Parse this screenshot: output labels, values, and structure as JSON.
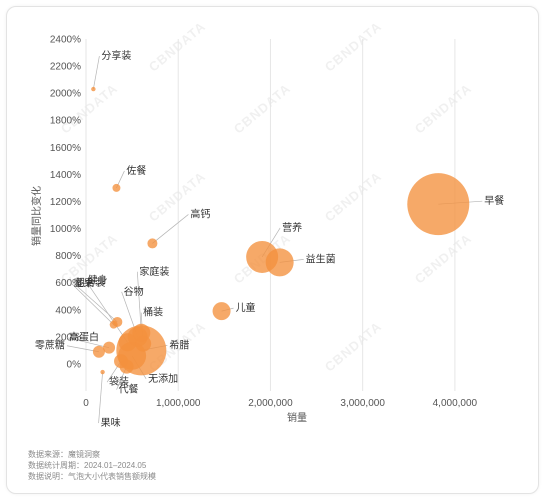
{
  "chart_data": {
    "type": "scatter",
    "subtype": "bubble",
    "xlabel": "销量",
    "ylabel": "销量同比变化",
    "xlim": [
      0,
      4500000
    ],
    "ylim": [
      -200,
      2400
    ],
    "x_ticks": [
      0,
      1000000,
      2000000,
      3000000,
      4000000
    ],
    "x_tick_labels": [
      "0",
      "1,000,000",
      "2,000,000",
      "3,000,000",
      "4,000,000"
    ],
    "y_ticks": [
      0,
      200,
      400,
      600,
      800,
      1000,
      1200,
      1400,
      1600,
      1800,
      2000,
      2200,
      2400
    ],
    "y_tick_labels": [
      "0%",
      "200%",
      "400%",
      "600%",
      "800%",
      "1000%",
      "1200%",
      "1400%",
      "1600%",
      "1800%",
      "2000%",
      "2200%",
      "2400%"
    ],
    "grid": "vertical",
    "watermark": "CBNDATA",
    "colors": {
      "bubble": "#f4913e",
      "grid": "#e6e6e6",
      "text": "#333333",
      "axis_text": "#555555"
    },
    "points": [
      {
        "label": "分享装",
        "x": 80000,
        "y": 2030,
        "size": 3
      },
      {
        "label": "佐餐",
        "x": 330000,
        "y": 1300,
        "size": 8
      },
      {
        "label": "高钙",
        "x": 720000,
        "y": 890,
        "size": 10
      },
      {
        "label": "营养",
        "x": 1910000,
        "y": 790,
        "size": 32
      },
      {
        "label": "益生菌",
        "x": 2100000,
        "y": 750,
        "size": 28
      },
      {
        "label": "早餐",
        "x": 3820000,
        "y": 1180,
        "size": 62
      },
      {
        "label": "儿童",
        "x": 1470000,
        "y": 390,
        "size": 18
      },
      {
        "label": "家庭装",
        "x": 600000,
        "y": 230,
        "size": 18
      },
      {
        "label": "谷物",
        "x": 560000,
        "y": 200,
        "size": 20
      },
      {
        "label": "桶装",
        "x": 620000,
        "y": 150,
        "size": 16
      },
      {
        "label": "健身",
        "x": 450000,
        "y": 160,
        "size": 18
      },
      {
        "label": "组合装",
        "x": 340000,
        "y": 310,
        "size": 10
      },
      {
        "label": "坚果",
        "x": 300000,
        "y": 290,
        "size": 8
      },
      {
        "label": "高蛋白",
        "x": 250000,
        "y": 120,
        "size": 12
      },
      {
        "label": "零蔗糖",
        "x": 140000,
        "y": 90,
        "size": 12
      },
      {
        "label": "希腊",
        "x": 600000,
        "y": 100,
        "size": 50
      },
      {
        "label": "无添加",
        "x": 500000,
        "y": 60,
        "size": 28
      },
      {
        "label": "袋装",
        "x": 380000,
        "y": 20,
        "size": 14
      },
      {
        "label": "代餐",
        "x": 440000,
        "y": -20,
        "size": 14
      },
      {
        "label": "果味",
        "x": 180000,
        "y": -60,
        "size": 3
      }
    ]
  },
  "footer": {
    "source_key": "数据来源：",
    "source_val": "魔镜洞察",
    "period_key": "数据统计周期：",
    "period_val": "2024.01–2024.05",
    "note_key": "数据说明：",
    "note_val": "气泡大小代表销售额规模"
  }
}
